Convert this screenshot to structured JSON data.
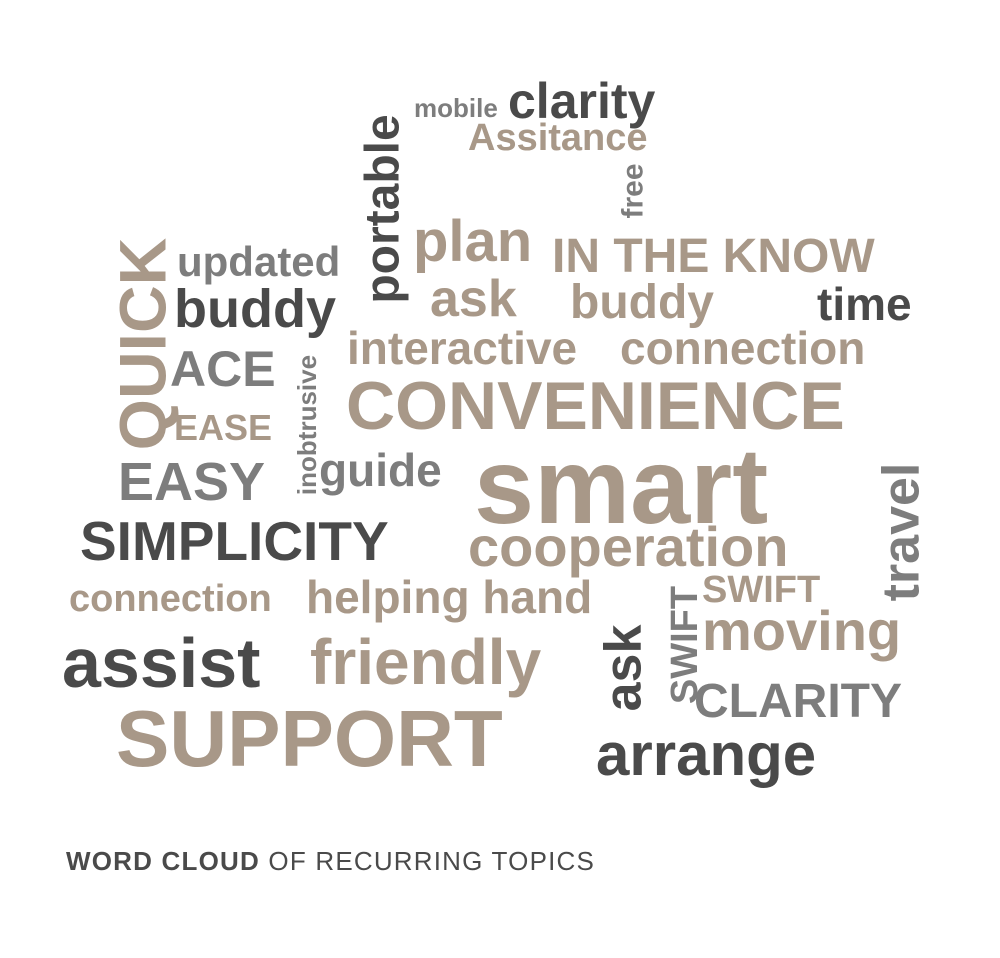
{
  "colors": {
    "tan": "#a89888",
    "dark": "#4a4a4a",
    "gray": "#7d7d7d"
  },
  "words": {
    "mobile": "mobile",
    "clarity": "clarity",
    "assitance": "Assitance",
    "portable": "portable",
    "free": "free",
    "quick": "QUICK",
    "updated": "updated",
    "plan": "plan",
    "in_the_know": "IN THE KNOW",
    "buddy1": "buddy",
    "ask1": "ask",
    "buddy2": "buddy",
    "time": "time",
    "ace": "ACE",
    "inobtrusive": "inobtrusive",
    "interactive": "interactive",
    "connection1": "connection",
    "convenience": "CONVENIENCE",
    "ease": "EASE",
    "easy": "EASY",
    "guide": "guide",
    "smart": "smart",
    "travel": "travel",
    "simplicity": "SIMPLICITY",
    "cooperation": "cooperation",
    "connection2": "connection",
    "helping_hand": "helping hand",
    "swift1": "SWIFT",
    "swift2": "SWIFT",
    "moving": "moving",
    "assist": "assist",
    "friendly": "friendly",
    "ask2": "ask",
    "clarity_caps": "CLARITY",
    "support": "SUPPORT",
    "arrange": "arrange"
  },
  "caption": {
    "bold": "WORD CLOUD",
    "rest": " OF RECURRING TOPICS"
  }
}
